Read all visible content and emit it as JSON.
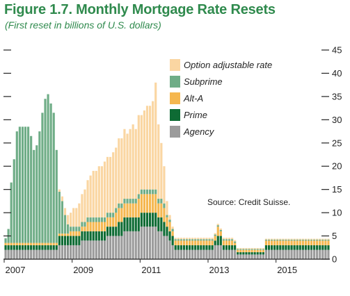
{
  "title": "Figure 1.7. Monthly Mortgage Rate Resets",
  "subtitle": "(First reset in billions of U.S. dollars)",
  "source": "Source: Credit Suisse.",
  "chart_data": {
    "type": "bar",
    "stacked": true,
    "ylim": [
      0,
      45
    ],
    "yticks": [
      0,
      5,
      10,
      15,
      20,
      25,
      30,
      35,
      40,
      45
    ],
    "xtick_labels": [
      "2007",
      "2009",
      "2011",
      "2013",
      "2015"
    ],
    "xtick_positions": [
      0,
      24,
      48,
      72,
      96
    ],
    "legend": [
      "Option adjustable rate",
      "Subprime",
      "Alt-A",
      "Prime",
      "Agency"
    ],
    "colors": {
      "Agency": "#9b9b9b",
      "Prime": "#0e6b34",
      "Alt-A": "#f5b74f",
      "Subprime": "#6fad87",
      "Option adjustable rate": "#fad6a2"
    },
    "series": [
      {
        "name": "Agency",
        "values": [
          2,
          2,
          2,
          2,
          2,
          2,
          2,
          2,
          2,
          2,
          2,
          2,
          2,
          2,
          2,
          2,
          2,
          2,
          2,
          3,
          3,
          3,
          3,
          3,
          3,
          3,
          3,
          4,
          4,
          4,
          4,
          4,
          4,
          4,
          4,
          4,
          5,
          5,
          5,
          5,
          5,
          5,
          6,
          6,
          6,
          6,
          6,
          6,
          7,
          7,
          7,
          7,
          7,
          7,
          6,
          6,
          5,
          5,
          4,
          3,
          2,
          2,
          2,
          2,
          2,
          2,
          2,
          2,
          2,
          2,
          2,
          2,
          2,
          2,
          3,
          3,
          3,
          2,
          2,
          2,
          2,
          2,
          1,
          1,
          1,
          1,
          1,
          1,
          1,
          1,
          1,
          1,
          2,
          2,
          2,
          2,
          2,
          2,
          2,
          2,
          2,
          2,
          2,
          2,
          2,
          2,
          2,
          2,
          2,
          2,
          2,
          2,
          2,
          2,
          2
        ]
      },
      {
        "name": "Prime",
        "values": [
          1,
          1,
          1,
          1,
          1,
          1,
          1,
          1,
          1,
          1,
          1,
          1,
          1,
          1,
          1,
          1,
          1,
          1,
          1,
          2,
          2,
          2,
          2,
          2,
          2,
          2,
          2,
          2,
          2,
          2,
          2,
          2,
          2,
          2,
          2,
          2,
          2,
          2,
          2,
          2,
          3,
          3,
          3,
          3,
          3,
          3,
          3,
          3,
          3,
          3,
          3,
          3,
          3,
          3,
          3,
          3,
          3,
          2,
          2,
          2,
          1,
          1,
          1,
          1,
          1,
          1,
          1,
          1,
          1,
          1,
          1,
          1,
          1,
          1,
          1,
          2,
          2,
          1,
          1,
          1,
          1,
          1,
          0.5,
          0.5,
          0.5,
          0.5,
          0.5,
          0.5,
          0.5,
          0.5,
          0.5,
          0.5,
          1,
          1,
          1,
          1,
          1,
          1,
          1,
          1,
          1,
          1,
          1,
          1,
          1,
          1,
          1,
          1,
          1,
          1,
          1,
          1,
          1,
          1,
          1
        ]
      },
      {
        "name": "Alt-A",
        "values": [
          0.5,
          0.5,
          0.5,
          0.5,
          0.5,
          0.5,
          0.5,
          0.5,
          0.5,
          0.5,
          0.5,
          0.5,
          0.5,
          0.5,
          0.5,
          0.5,
          0.5,
          0.5,
          0.5,
          0.5,
          0.5,
          0.5,
          0.5,
          1,
          1,
          1,
          1,
          1,
          1,
          2,
          2,
          2,
          2,
          2,
          2,
          2,
          2,
          2,
          2,
          3,
          3,
          3,
          3,
          3,
          3,
          3,
          3,
          4,
          4,
          4,
          4,
          4,
          4,
          4,
          3,
          3,
          3,
          2,
          2,
          1,
          1,
          1,
          1,
          1,
          1,
          1,
          1,
          1,
          1,
          1,
          1,
          1,
          1,
          1,
          1,
          2,
          1,
          1,
          1,
          1,
          1,
          0.5,
          0.5,
          0.5,
          0.5,
          0.5,
          0.5,
          0.5,
          0.5,
          0.5,
          0.5,
          0.5,
          1,
          1,
          1,
          1,
          1,
          1,
          1,
          1,
          1,
          1,
          1,
          1,
          1,
          1,
          1,
          1,
          1,
          1,
          1,
          1,
          1,
          1,
          1
        ]
      },
      {
        "name": "Subprime",
        "values": [
          1,
          3,
          13,
          18,
          24,
          25,
          25,
          25,
          25,
          23,
          20,
          21,
          24,
          28,
          31,
          32,
          30,
          28,
          20,
          9,
          7,
          4,
          2,
          1,
          1,
          1,
          1,
          1,
          1,
          1,
          1,
          1,
          1,
          1,
          1,
          1,
          1,
          1,
          1,
          1,
          1,
          1,
          1,
          1,
          1,
          1,
          1,
          1,
          1,
          1,
          1,
          1,
          1,
          1,
          1,
          1,
          1,
          0.5,
          0.5,
          0.5,
          0.3,
          0.3,
          0.3,
          0.3,
          0.3,
          0.3,
          0.3,
          0.3,
          0.3,
          0.3,
          0.3,
          0.3,
          0.3,
          0.3,
          0.3,
          0.3,
          0.3,
          0.3,
          0.3,
          0.3,
          0.3,
          0.3,
          0.2,
          0.2,
          0.2,
          0.2,
          0.2,
          0.2,
          0.2,
          0.2,
          0.2,
          0.2,
          0.2,
          0.2,
          0.2,
          0.2,
          0.2,
          0.2,
          0.2,
          0.2,
          0.2,
          0.2,
          0.2,
          0.2,
          0.2,
          0.2,
          0.2,
          0.2,
          0.2,
          0.2,
          0.2,
          0.2,
          0.2,
          0.2,
          0.2
        ]
      },
      {
        "name": "Option adjustable rate",
        "values": [
          0,
          0,
          0,
          0,
          0,
          0,
          0,
          0,
          0,
          0,
          0,
          0,
          0,
          0,
          0,
          0,
          0,
          0,
          0,
          0.5,
          1,
          1.5,
          2,
          3,
          4,
          4,
          5,
          6,
          7,
          8,
          9,
          10,
          10,
          11,
          11,
          12,
          12,
          12,
          13,
          13,
          14,
          14,
          15,
          14,
          15,
          16,
          15,
          17,
          16,
          17,
          18,
          18,
          19,
          23,
          16,
          12,
          8,
          3,
          1,
          0.5,
          0.3,
          0.3,
          0.3,
          0.3,
          0.3,
          0.3,
          0.3,
          0.3,
          0.3,
          0.3,
          0.3,
          0.3,
          0.3,
          0.3,
          0.3,
          0.3,
          0.3,
          0.3,
          0.3,
          0.3,
          0.3,
          0.3,
          0.2,
          0.2,
          0.2,
          0.2,
          0.2,
          0.2,
          0.2,
          0.2,
          0.2,
          0.2,
          0.2,
          0.2,
          0.2,
          0.2,
          0.2,
          0.2,
          0.2,
          0.2,
          0.2,
          0.2,
          0.2,
          0.2,
          0.2,
          0.2,
          0.2,
          0.2,
          0.2,
          0.2,
          0.2,
          0.2,
          0.2,
          0.2,
          0.2
        ]
      }
    ]
  }
}
